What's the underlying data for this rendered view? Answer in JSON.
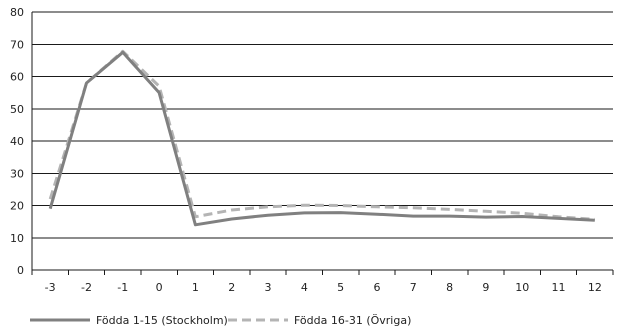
{
  "chart_data": {
    "type": "line",
    "x": [
      "-3",
      "-2",
      "-1",
      "0",
      "1",
      "2",
      "3",
      "4",
      "5",
      "6",
      "7",
      "8",
      "9",
      "10",
      "11",
      "12"
    ],
    "ylim": [
      0,
      80
    ],
    "yticks": [
      "0",
      "10",
      "20",
      "30",
      "40",
      "50",
      "60",
      "70",
      "80"
    ],
    "grid": "horizontal",
    "legend_position": "bottom",
    "series": [
      {
        "name": "Födda 1-15 (Stockholm)",
        "style": "solid",
        "color": "#808080",
        "values": [
          19,
          58,
          67.5,
          55,
          14,
          15.8,
          17,
          17.7,
          17.8,
          17.3,
          16.7,
          16.7,
          16.4,
          16.6,
          16.0,
          15.4
        ]
      },
      {
        "name": "Födda 16-31 (Övriga)",
        "style": "dashed",
        "color": "#b4b4b4",
        "values": [
          22,
          58,
          67.8,
          57,
          16.5,
          18.6,
          19.6,
          20.1,
          20.0,
          19.6,
          19.3,
          18.8,
          18.2,
          17.6,
          16.5,
          15.7
        ]
      }
    ]
  }
}
